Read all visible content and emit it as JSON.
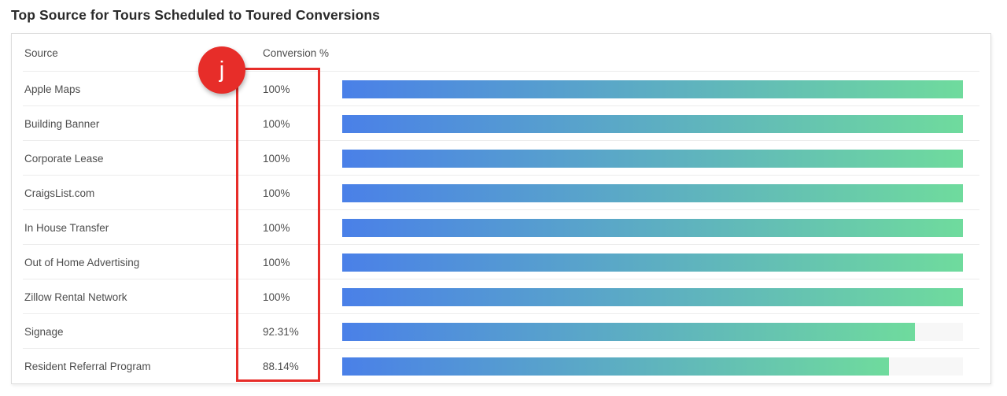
{
  "title": "Top Source for Tours Scheduled to Toured Conversions",
  "table": {
    "columns": {
      "source": "Source",
      "conversion": "Conversion %"
    },
    "rows": [
      {
        "source": "Apple Maps",
        "conversion_label": "100%",
        "value": 100
      },
      {
        "source": "Building Banner",
        "conversion_label": "100%",
        "value": 100
      },
      {
        "source": "Corporate Lease",
        "conversion_label": "100%",
        "value": 100
      },
      {
        "source": "CraigsList.com",
        "conversion_label": "100%",
        "value": 100
      },
      {
        "source": "In House Transfer",
        "conversion_label": "100%",
        "value": 100
      },
      {
        "source": "Out of Home Advertising",
        "conversion_label": "100%",
        "value": 100
      },
      {
        "source": "Zillow Rental Network",
        "conversion_label": "100%",
        "value": 100
      },
      {
        "source": "Signage",
        "conversion_label": "92.31%",
        "value": 92.31
      },
      {
        "source": "Resident Referral Program",
        "conversion_label": "88.14%",
        "value": 88.14
      }
    ]
  },
  "annotation": {
    "marker_label": "j"
  },
  "colors": {
    "bar_start": "#4a80e8",
    "bar_end": "#6fdb9d",
    "track": "#f7f7f7",
    "annotation_red": "#e72d29"
  },
  "chart_data": {
    "type": "bar",
    "orientation": "horizontal",
    "title": "Top Source for Tours Scheduled to Toured Conversions",
    "categories": [
      "Apple Maps",
      "Building Banner",
      "Corporate Lease",
      "CraigsList.com",
      "In House Transfer",
      "Out of Home Advertising",
      "Zillow Rental Network",
      "Signage",
      "Resident Referral Program"
    ],
    "values": [
      100,
      100,
      100,
      100,
      100,
      100,
      100,
      92.31,
      88.14
    ],
    "value_labels": [
      "100%",
      "100%",
      "100%",
      "100%",
      "100%",
      "100%",
      "100%",
      "92.31%",
      "88.14%"
    ],
    "xlabel": "Conversion %",
    "ylabel": "Source",
    "xlim": [
      0,
      100
    ],
    "grid": false,
    "legend": false,
    "bar_gradient": [
      "#4a80e8",
      "#6fdb9d"
    ]
  }
}
